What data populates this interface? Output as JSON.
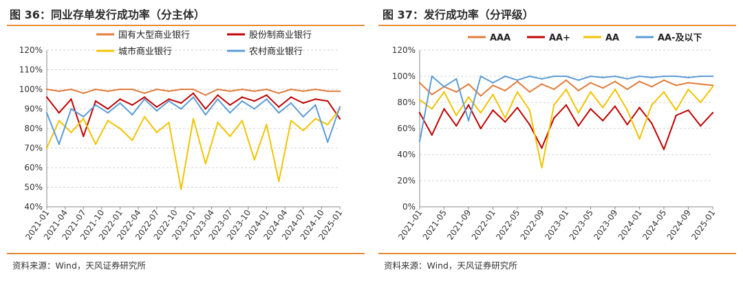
{
  "figures": [
    {
      "title": "图 36：同业存单发行成功率（分主体）",
      "source": "资料来源：Wind，天风证券研究所"
    },
    {
      "title": "图 37：发行成功率（分评级）",
      "source": "资料来源：Wind，天风证券研究所"
    }
  ],
  "chart_data": [
    {
      "type": "line",
      "title": "",
      "xlabel": "",
      "ylabel": "",
      "ylim": [
        40,
        120
      ],
      "yticks": [
        "40%",
        "50%",
        "60%",
        "70%",
        "80%",
        "90%",
        "100%",
        "110%",
        "120%"
      ],
      "xticks": [
        "2021-01",
        "2021-04",
        "2021-07",
        "2021-10",
        "2022-01",
        "2022-04",
        "2022-07",
        "2022-10",
        "2023-01",
        "2023-04",
        "2023-07",
        "2023-10",
        "2024-01",
        "2024-04",
        "2024-07",
        "2024-10",
        "2025-01"
      ],
      "grid": "horizontal-dashed",
      "legend": "top",
      "series": [
        {
          "name": "国有大型商业银行",
          "color": "#e07b39",
          "x": [
            "2021-01",
            "2021-03",
            "2021-05",
            "2021-07",
            "2021-09",
            "2021-11",
            "2022-01",
            "2022-03",
            "2022-05",
            "2022-07",
            "2022-09",
            "2022-11",
            "2023-01",
            "2023-03",
            "2023-05",
            "2023-07",
            "2023-09",
            "2023-11",
            "2024-01",
            "2024-03",
            "2024-05",
            "2024-07",
            "2024-09",
            "2024-11",
            "2025-01"
          ],
          "values": [
            100,
            99,
            100,
            98,
            100,
            99,
            100,
            100,
            98,
            100,
            99,
            100,
            100,
            97,
            100,
            99,
            100,
            99,
            100,
            98,
            100,
            99,
            100,
            99,
            99
          ]
        },
        {
          "name": "股份制商业银行",
          "color": "#c00000",
          "x": [
            "2021-01",
            "2021-03",
            "2021-05",
            "2021-07",
            "2021-09",
            "2021-11",
            "2022-01",
            "2022-03",
            "2022-05",
            "2022-07",
            "2022-09",
            "2022-11",
            "2023-01",
            "2023-03",
            "2023-05",
            "2023-07",
            "2023-09",
            "2023-11",
            "2024-01",
            "2024-03",
            "2024-05",
            "2024-07",
            "2024-09",
            "2024-11",
            "2025-01"
          ],
          "values": [
            96,
            88,
            95,
            76,
            94,
            90,
            95,
            92,
            96,
            91,
            95,
            93,
            98,
            90,
            97,
            92,
            96,
            94,
            97,
            91,
            96,
            93,
            95,
            94,
            85
          ]
        },
        {
          "name": "城市商业银行",
          "color": "#f2c300",
          "x": [
            "2021-01",
            "2021-03",
            "2021-05",
            "2021-07",
            "2021-09",
            "2021-11",
            "2022-01",
            "2022-03",
            "2022-05",
            "2022-07",
            "2022-09",
            "2022-11",
            "2023-01",
            "2023-03",
            "2023-05",
            "2023-07",
            "2023-09",
            "2023-11",
            "2024-01",
            "2024-03",
            "2024-05",
            "2024-07",
            "2024-09",
            "2024-11",
            "2025-01"
          ],
          "values": [
            70,
            84,
            78,
            85,
            72,
            84,
            80,
            74,
            86,
            78,
            83,
            49,
            85,
            62,
            83,
            76,
            84,
            64,
            82,
            53,
            84,
            79,
            85,
            82,
            90
          ]
        },
        {
          "name": "农村商业银行",
          "color": "#5b9bd5",
          "x": [
            "2021-01",
            "2021-03",
            "2021-05",
            "2021-07",
            "2021-09",
            "2021-11",
            "2022-01",
            "2022-03",
            "2022-05",
            "2022-07",
            "2022-09",
            "2022-11",
            "2023-01",
            "2023-03",
            "2023-05",
            "2023-07",
            "2023-09",
            "2023-11",
            "2024-01",
            "2024-03",
            "2024-05",
            "2024-07",
            "2024-09",
            "2024-11",
            "2025-01"
          ],
          "values": [
            88,
            72,
            90,
            86,
            92,
            88,
            93,
            87,
            95,
            89,
            94,
            90,
            96,
            87,
            95,
            88,
            94,
            90,
            95,
            88,
            93,
            86,
            92,
            73,
            91
          ]
        }
      ]
    },
    {
      "type": "line",
      "title": "",
      "xlabel": "",
      "ylabel": "",
      "ylim": [
        0,
        120
      ],
      "yticks": [
        "0%",
        "20%",
        "40%",
        "60%",
        "80%",
        "100%",
        "120%"
      ],
      "xticks": [
        "2021-01",
        "2021-05",
        "2021-09",
        "2022-01",
        "2022-05",
        "2022-09",
        "2023-01",
        "2023-05",
        "2023-09",
        "2024-01",
        "2024-05",
        "2024-09",
        "2025-01"
      ],
      "grid": "horizontal-dashed",
      "legend": "top",
      "series": [
        {
          "name": "AAA",
          "color": "#e07b39",
          "x": [
            "2021-01",
            "2021-03",
            "2021-05",
            "2021-07",
            "2021-09",
            "2021-11",
            "2022-01",
            "2022-03",
            "2022-05",
            "2022-07",
            "2022-09",
            "2022-11",
            "2023-01",
            "2023-03",
            "2023-05",
            "2023-07",
            "2023-09",
            "2023-11",
            "2024-01",
            "2024-03",
            "2024-05",
            "2024-07",
            "2024-09",
            "2024-11",
            "2025-01"
          ],
          "values": [
            95,
            86,
            92,
            88,
            94,
            85,
            93,
            89,
            96,
            88,
            94,
            90,
            97,
            89,
            95,
            91,
            96,
            90,
            96,
            92,
            97,
            93,
            95,
            94,
            93
          ]
        },
        {
          "name": "AA+",
          "color": "#c00000",
          "x": [
            "2021-01",
            "2021-03",
            "2021-05",
            "2021-07",
            "2021-09",
            "2021-11",
            "2022-01",
            "2022-03",
            "2022-05",
            "2022-07",
            "2022-09",
            "2022-11",
            "2023-01",
            "2023-03",
            "2023-05",
            "2023-07",
            "2023-09",
            "2023-11",
            "2024-01",
            "2024-03",
            "2024-05",
            "2024-07",
            "2024-09",
            "2024-11",
            "2025-01"
          ],
          "values": [
            72,
            55,
            75,
            62,
            78,
            60,
            74,
            65,
            76,
            63,
            45,
            68,
            78,
            62,
            75,
            66,
            77,
            63,
            76,
            64,
            44,
            70,
            74,
            62,
            72
          ]
        },
        {
          "name": "AA",
          "color": "#f2c300",
          "x": [
            "2021-01",
            "2021-03",
            "2021-05",
            "2021-07",
            "2021-09",
            "2021-11",
            "2022-01",
            "2022-03",
            "2022-05",
            "2022-07",
            "2022-09",
            "2022-11",
            "2023-01",
            "2023-03",
            "2023-05",
            "2023-07",
            "2023-09",
            "2023-11",
            "2024-01",
            "2024-03",
            "2024-05",
            "2024-07",
            "2024-09",
            "2024-11",
            "2025-01"
          ],
          "values": [
            82,
            75,
            88,
            70,
            84,
            72,
            86,
            68,
            88,
            74,
            30,
            78,
            90,
            72,
            88,
            76,
            90,
            74,
            52,
            78,
            88,
            74,
            90,
            80,
            92
          ]
        },
        {
          "name": "AA-及以下",
          "color": "#5b9bd5",
          "x": [
            "2021-01",
            "2021-03",
            "2021-05",
            "2021-07",
            "2021-09",
            "2021-11",
            "2022-01",
            "2022-03",
            "2022-05",
            "2022-07",
            "2022-09",
            "2022-11",
            "2023-01",
            "2023-03",
            "2023-05",
            "2023-07",
            "2023-09",
            "2023-11",
            "2024-01",
            "2024-03",
            "2024-05",
            "2024-07",
            "2024-09",
            "2024-11",
            "2025-01"
          ],
          "values": [
            50,
            100,
            92,
            98,
            66,
            100,
            95,
            100,
            97,
            100,
            98,
            100,
            100,
            97,
            100,
            99,
            100,
            98,
            100,
            99,
            100,
            100,
            99,
            100,
            100
          ]
        }
      ]
    }
  ]
}
